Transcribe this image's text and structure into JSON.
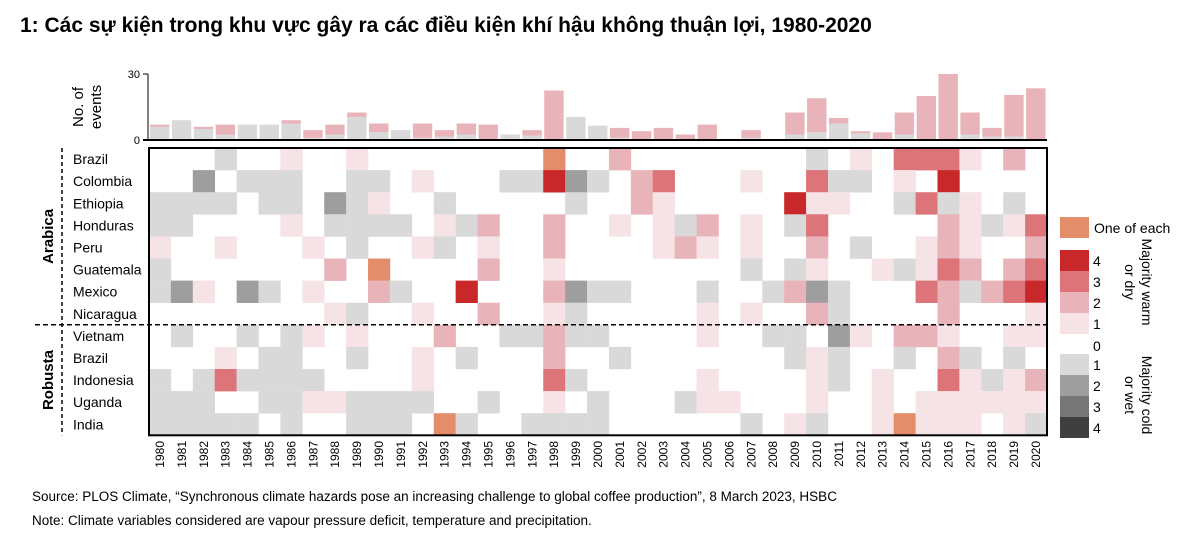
{
  "title": "1: Các sự kiện trong khu vực gây ra các điều kiện khí hậu không thuận lợi, 1980-2020",
  "source": "Source: PLOS Climate, “Synchronous climate hazards pose an increasing challenge to global coffee production”, 8 March 2023, HSBC",
  "note": "Note: Climate variables considered are vapour pressure deficit, temperature and precipitation.",
  "chart_data": [
    {
      "type": "bar",
      "stacked": true,
      "ylabel": "No. of events",
      "ylim": [
        0,
        30
      ],
      "yticks": [
        "0",
        "30"
      ],
      "categories": [
        1980,
        1981,
        1982,
        1983,
        1984,
        1985,
        1986,
        1987,
        1988,
        1989,
        1990,
        1991,
        1992,
        1993,
        1994,
        1995,
        1996,
        1997,
        1998,
        1999,
        2000,
        2001,
        2002,
        2003,
        2004,
        2005,
        2006,
        2007,
        2008,
        2009,
        2010,
        2011,
        2012,
        2013,
        2014,
        2015,
        2016,
        2017,
        2018,
        2019,
        2020
      ],
      "series": [
        {
          "key": "cold",
          "color": "#d9d9d9",
          "values": [
            6,
            9,
            5,
            2.5,
            7,
            7,
            7.5,
            1,
            2.5,
            10.5,
            3.5,
            4.5,
            1,
            1.5,
            2.5,
            0,
            2.5,
            2,
            0,
            10.5,
            6.5,
            1,
            0,
            0,
            0,
            0,
            0,
            1,
            0.5,
            2.5,
            3.5,
            7.5,
            3,
            0,
            2.5,
            0,
            0,
            2.5,
            1.5,
            1.5,
            0
          ]
        },
        {
          "key": "warm",
          "color": "#e9b4b9",
          "values": [
            1,
            0,
            1,
            4.5,
            0,
            0,
            1.5,
            3.5,
            4.5,
            2,
            4,
            0,
            6.5,
            3,
            5,
            7,
            0,
            2.5,
            22.5,
            0,
            0,
            4.5,
            4,
            5.5,
            2.5,
            7,
            0.5,
            3.5,
            0,
            10,
            15.5,
            2.5,
            1,
            3.5,
            10,
            20,
            30,
            10,
            4,
            19,
            23.5
          ]
        }
      ]
    },
    {
      "type": "heatmap",
      "x": [
        1980,
        1981,
        1982,
        1983,
        1984,
        1985,
        1986,
        1987,
        1988,
        1989,
        1990,
        1991,
        1992,
        1993,
        1994,
        1995,
        1996,
        1997,
        1998,
        1999,
        2000,
        2001,
        2002,
        2003,
        2004,
        2005,
        2006,
        2007,
        2008,
        2009,
        2010,
        2011,
        2012,
        2013,
        2014,
        2015,
        2016,
        2017,
        2018,
        2019,
        2020
      ],
      "value_encoding": "positive = majority warm or dry (1-4), negative = majority cold or wet (1-4), 0 = none, o = one of each",
      "groups": [
        {
          "name": "Arabica",
          "rows": [
            {
              "label": "Brazil",
              "values": [
                0,
                0,
                0,
                -1,
                0,
                0,
                1,
                0,
                0,
                1,
                0,
                0,
                0,
                0,
                0,
                0,
                0,
                0,
                "o",
                0,
                0,
                2,
                0,
                0,
                0,
                0,
                0,
                0,
                0,
                0,
                -1,
                0,
                1,
                0,
                3,
                3,
                3,
                1,
                0,
                2,
                0
              ]
            },
            {
              "label": "Colombia",
              "values": [
                0,
                0,
                -2,
                0,
                -1,
                -1,
                -1,
                0,
                0,
                -1,
                -1,
                0,
                1,
                0,
                0,
                0,
                -1,
                -1,
                4,
                -2,
                -1,
                0,
                2,
                3,
                0,
                0,
                0,
                1,
                0,
                0,
                3,
                -1,
                -1,
                0,
                1,
                0,
                4,
                0,
                0,
                0,
                0
              ]
            },
            {
              "label": "Ethiopia",
              "values": [
                -1,
                -1,
                -1,
                -1,
                0,
                -1,
                -1,
                0,
                -2,
                -1,
                1,
                0,
                0,
                -1,
                0,
                0,
                0,
                0,
                0,
                -1,
                0,
                0,
                2,
                1,
                0,
                0,
                0,
                0,
                0,
                4,
                1,
                1,
                0,
                0,
                -1,
                3,
                -1,
                1,
                0,
                -1,
                0
              ]
            },
            {
              "label": "Honduras",
              "values": [
                -1,
                -1,
                0,
                0,
                0,
                0,
                1,
                0,
                -1,
                -1,
                -1,
                -1,
                0,
                1,
                -1,
                2,
                0,
                0,
                2,
                0,
                0,
                1,
                0,
                1,
                -1,
                2,
                0,
                1,
                0,
                -1,
                3,
                0,
                0,
                0,
                0,
                0,
                2,
                1,
                -1,
                1,
                3
              ]
            },
            {
              "label": "Peru",
              "values": [
                1,
                0,
                0,
                1,
                0,
                0,
                0,
                1,
                0,
                -1,
                0,
                0,
                1,
                -1,
                0,
                1,
                0,
                0,
                2,
                0,
                0,
                0,
                0,
                1,
                2,
                1,
                0,
                1,
                0,
                0,
                2,
                0,
                -1,
                0,
                0,
                1,
                2,
                1,
                0,
                0,
                2
              ]
            },
            {
              "label": "Guatemala",
              "values": [
                -1,
                0,
                0,
                0,
                0,
                0,
                0,
                0,
                2,
                0,
                "o",
                0,
                0,
                0,
                0,
                2,
                0,
                0,
                1,
                0,
                0,
                0,
                0,
                0,
                0,
                0,
                0,
                -1,
                0,
                -1,
                1,
                0,
                0,
                1,
                -1,
                1,
                3,
                2,
                0,
                2,
                3
              ]
            },
            {
              "label": "Mexico",
              "values": [
                -1,
                -2,
                1,
                0,
                -2,
                -1,
                0,
                1,
                0,
                0,
                2,
                -1,
                0,
                0,
                4,
                0,
                0,
                0,
                2,
                -2,
                -1,
                -1,
                0,
                0,
                0,
                -1,
                0,
                0,
                -1,
                2,
                -2,
                -1,
                0,
                0,
                0,
                3,
                2,
                -1,
                2,
                3,
                4
              ]
            },
            {
              "label": "Nicaragua",
              "values": [
                0,
                0,
                0,
                0,
                0,
                0,
                0,
                0,
                1,
                -1,
                0,
                0,
                1,
                0,
                0,
                2,
                0,
                0,
                1,
                -1,
                0,
                0,
                0,
                0,
                0,
                1,
                0,
                1,
                0,
                0,
                2,
                -1,
                0,
                0,
                0,
                0,
                2,
                0,
                0,
                0,
                1
              ]
            }
          ]
        },
        {
          "name": "Robusta",
          "rows": [
            {
              "label": "Vietnam",
              "values": [
                0,
                -1,
                0,
                0,
                -1,
                0,
                -1,
                1,
                0,
                1,
                0,
                0,
                0,
                2,
                0,
                0,
                -1,
                -1,
                2,
                -1,
                -1,
                0,
                0,
                0,
                0,
                1,
                0,
                0,
                -1,
                -1,
                0,
                -2,
                1,
                0,
                2,
                2,
                1,
                0,
                0,
                1,
                1
              ]
            },
            {
              "label": "Brazil",
              "values": [
                0,
                0,
                0,
                1,
                0,
                -1,
                -1,
                0,
                0,
                -1,
                0,
                0,
                1,
                0,
                -1,
                0,
                0,
                0,
                2,
                0,
                0,
                -1,
                0,
                0,
                0,
                0,
                0,
                0,
                0,
                -1,
                1,
                -1,
                0,
                0,
                -1,
                0,
                2,
                -1,
                0,
                -1,
                0
              ]
            },
            {
              "label": "Indonesia",
              "values": [
                -1,
                0,
                -1,
                3,
                -1,
                -1,
                -1,
                -1,
                0,
                0,
                0,
                0,
                1,
                0,
                0,
                0,
                0,
                0,
                3,
                -1,
                0,
                0,
                0,
                0,
                0,
                1,
                0,
                0,
                0,
                0,
                1,
                -1,
                0,
                1,
                0,
                0,
                3,
                1,
                -1,
                1,
                2
              ]
            },
            {
              "label": "Uganda",
              "values": [
                -1,
                -1,
                -1,
                0,
                0,
                -1,
                -1,
                1,
                1,
                -1,
                -1,
                -1,
                -1,
                0,
                0,
                -1,
                0,
                0,
                1,
                0,
                -1,
                0,
                0,
                0,
                -1,
                1,
                1,
                0,
                0,
                0,
                1,
                0,
                0,
                1,
                0,
                1,
                1,
                1,
                1,
                1,
                1
              ]
            },
            {
              "label": "India",
              "values": [
                -1,
                -1,
                -1,
                -1,
                -1,
                0,
                -1,
                0,
                0,
                -1,
                -1,
                -1,
                0,
                "o",
                -1,
                0,
                0,
                -1,
                -1,
                -1,
                -1,
                0,
                0,
                0,
                0,
                0,
                0,
                -1,
                0,
                1,
                -1,
                0,
                0,
                1,
                "o",
                1,
                1,
                1,
                0,
                1,
                -1
              ]
            }
          ]
        }
      ],
      "legend": {
        "placement": "right",
        "one_of_each": {
          "label": "One of each",
          "color": "#e38d6a"
        },
        "warm": {
          "title": "Majority warm or dry",
          "levels": [
            "4",
            "3",
            "2",
            "1"
          ],
          "colors": [
            "#c9282a",
            "#dd747a",
            "#e9b4b9",
            "#f6e3e5"
          ]
        },
        "zero": {
          "label": "0",
          "color": "#ffffff"
        },
        "cold": {
          "title": "Majority cold or wet",
          "levels": [
            "1",
            "2",
            "3",
            "4"
          ],
          "colors": [
            "#d9d9d9",
            "#9e9e9e",
            "#767676",
            "#3f3f3f"
          ]
        }
      }
    }
  ]
}
